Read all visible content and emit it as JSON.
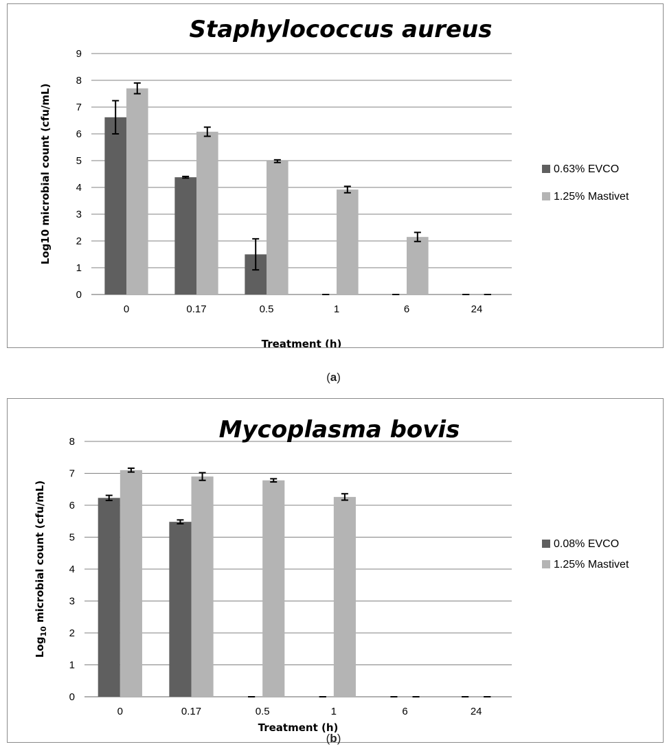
{
  "colors": {
    "series1": "#5f5f5f",
    "series2": "#b4b4b4",
    "grid": "#808080",
    "error_bar": "#000000"
  },
  "captions": [
    "a",
    "b"
  ],
  "chart_data": [
    {
      "type": "bar",
      "title": "Staphylococcus aureus",
      "xlabel": "Treatment (h)",
      "ylabel": "Log10 microbial count (cfu/mL)",
      "ylim": [
        0,
        9
      ],
      "yticks": [
        "0",
        "1",
        "2",
        "3",
        "4",
        "5",
        "6",
        "7",
        "8",
        "9"
      ],
      "grid": true,
      "legend_position": "right",
      "categories": [
        "0",
        "0.17",
        "0.5",
        "1",
        "6",
        "24"
      ],
      "series": [
        {
          "name": "0.63% EVCO",
          "values": [
            6.62,
            4.38,
            1.5,
            0,
            0,
            0
          ],
          "errors": [
            0.62,
            0.03,
            0.58,
            0,
            0,
            0
          ]
        },
        {
          "name": "1.25% Mastivet",
          "values": [
            7.7,
            6.08,
            4.98,
            3.92,
            2.15,
            0
          ],
          "errors": [
            0.2,
            0.17,
            0.05,
            0.12,
            0.17,
            0
          ]
        }
      ]
    },
    {
      "type": "bar",
      "title": "Mycoplasma bovis",
      "xlabel": "Treatment (h)",
      "ylabel_main": "Log",
      "ylabel_sub": "10",
      "ylabel_rest": " microbial count (cfu/mL)",
      "ylim": [
        0,
        8
      ],
      "yticks": [
        "0",
        "1",
        "2",
        "3",
        "4",
        "5",
        "6",
        "7",
        "8"
      ],
      "grid": true,
      "legend_position": "right",
      "categories": [
        "0",
        "0.17",
        "0.5",
        "1",
        "6",
        "24"
      ],
      "series": [
        {
          "name": "0.08% EVCO",
          "values": [
            6.23,
            5.48,
            0,
            0,
            0,
            0
          ],
          "errors": [
            0.08,
            0.06,
            0,
            0,
            0,
            0
          ]
        },
        {
          "name": "1.25% Mastivet",
          "values": [
            7.1,
            6.9,
            6.78,
            6.26,
            0,
            0
          ],
          "errors": [
            0.06,
            0.12,
            0.05,
            0.1,
            0,
            0
          ]
        }
      ]
    }
  ]
}
